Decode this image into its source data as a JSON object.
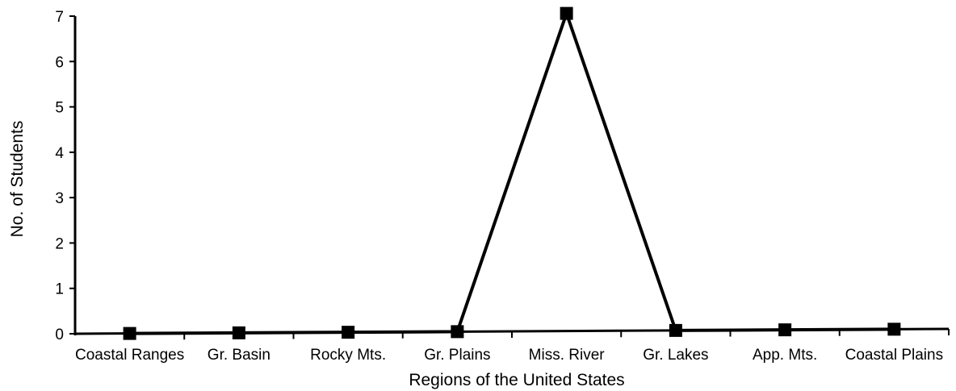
{
  "chart_data": {
    "type": "line",
    "title": "",
    "xlabel": "Regions of the United States",
    "ylabel": "No. of Students",
    "categories": [
      "Coastal Ranges",
      "Gr. Basin",
      "Rocky Mts.",
      "Gr. Plains",
      "Miss. River",
      "Gr. Lakes",
      "App. Mts.",
      "Coastal Plains"
    ],
    "series": [
      {
        "values": [
          0,
          0,
          0,
          0,
          7,
          0,
          0,
          0
        ]
      }
    ],
    "ylim": [
      0,
      7
    ],
    "yticks": [
      "0",
      "1",
      "2",
      "3",
      "4",
      "5",
      "6",
      "7"
    ],
    "grid": false,
    "legend": "none",
    "marker": "square",
    "colors": {
      "line": "#000000",
      "marker": "#000000",
      "axis": "#000000"
    }
  }
}
